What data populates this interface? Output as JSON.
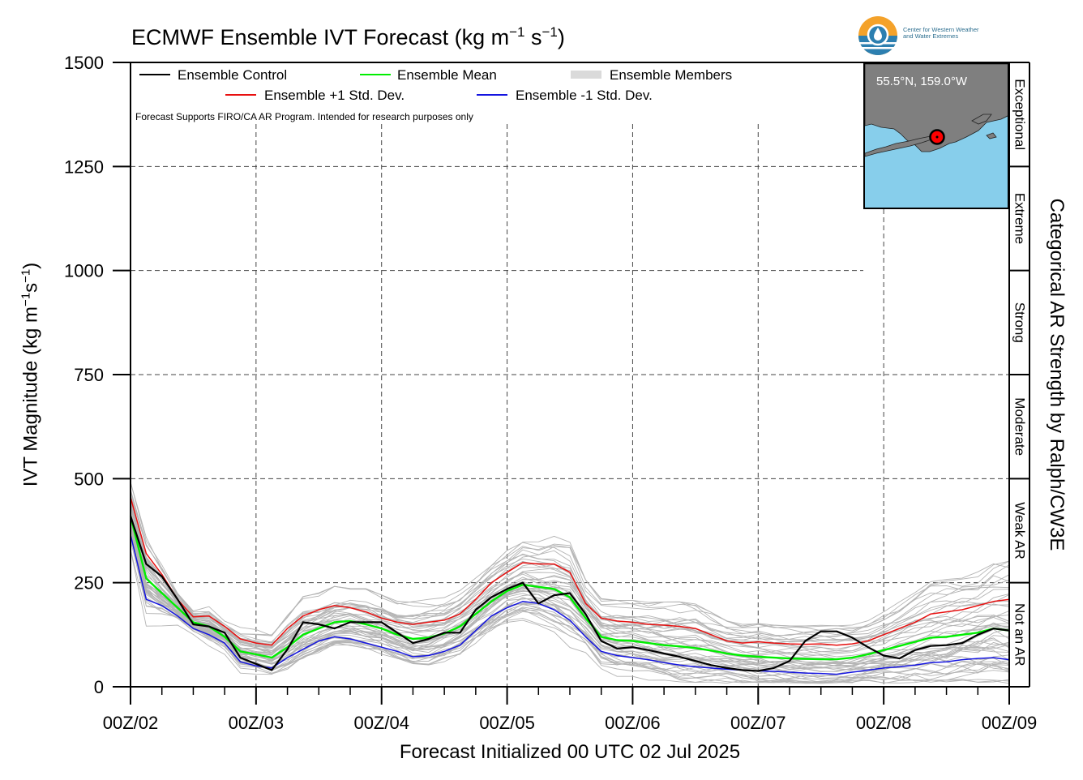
{
  "title_main": "ECMWF Ensemble IVT Forecast (kg m",
  "title_exp1": "−1",
  "title_mid": " s",
  "title_exp2": "−1",
  "title_end": ")",
  "ylabel_main": "IVT Magnitude (kg m",
  "ylabel_exp1": "−1",
  "ylabel_mid": "s",
  "ylabel_exp2": "−1",
  "ylabel_end": ")",
  "right_label": "Categorical AR Strength by Ralph/CW3E",
  "xlabel": "Forecast Initialized 00 UTC 02 Jul 2025",
  "disclaimer": "Forecast Supports FIRO/CA AR Program. Intended for research purposes only",
  "logo_line1": "Center for Western Weather",
  "logo_line2": "and Water Extremes",
  "inset_label": "55.5°N, 159.0°W",
  "colors": {
    "control": "#000000",
    "mean": "#00ee00",
    "plus_std": "#e81010",
    "minus_std": "#1414e0",
    "members": "#b4b4b4",
    "map_ocean": "#87ceeb",
    "map_land": "#7f7f7f",
    "marker": "#ff0000"
  },
  "chart_data": {
    "type": "line",
    "x_unit": "hours since 00Z 02 Jul 2025",
    "xlim": [
      0,
      168
    ],
    "ylim": [
      0,
      1500
    ],
    "yticks": [
      0,
      250,
      500,
      750,
      1000,
      1250,
      1500
    ],
    "xtick_labels": [
      "00Z/02",
      "00Z/03",
      "00Z/04",
      "00Z/05",
      "00Z/06",
      "00Z/07",
      "00Z/08",
      "00Z/09"
    ],
    "grid": true,
    "legend_position": "top-left",
    "legend": [
      "Ensemble Control",
      "Ensemble Mean",
      "Ensemble Members",
      "Ensemble +1 Std. Dev.",
      "Ensemble -1 Std. Dev."
    ],
    "categories": [
      {
        "label": "Not an AR",
        "range": [
          0,
          250
        ]
      },
      {
        "label": "Weak AR",
        "range": [
          250,
          500
        ]
      },
      {
        "label": "Moderate",
        "range": [
          500,
          750
        ]
      },
      {
        "label": "Strong",
        "range": [
          750,
          1000
        ]
      },
      {
        "label": "Extreme",
        "range": [
          1000,
          1250
        ]
      },
      {
        "label": "Exceptional",
        "range": [
          1250,
          1500
        ]
      }
    ],
    "x": [
      0,
      3,
      6,
      9,
      12,
      15,
      18,
      21,
      24,
      27,
      30,
      33,
      36,
      39,
      42,
      45,
      48,
      51,
      54,
      57,
      60,
      63,
      66,
      69,
      72,
      75,
      78,
      81,
      84,
      87,
      90,
      93,
      96,
      99,
      102,
      105,
      108,
      111,
      114,
      117,
      120,
      123,
      126,
      129,
      132,
      135,
      138,
      141,
      144,
      147,
      150,
      153,
      156,
      159,
      162,
      165,
      168
    ],
    "series": [
      {
        "name": "Ensemble Control",
        "values": [
          410,
          295,
          265,
          210,
          150,
          145,
          130,
          70,
          55,
          40,
          90,
          155,
          150,
          140,
          155,
          155,
          155,
          130,
          105,
          115,
          130,
          130,
          185,
          215,
          235,
          250,
          200,
          220,
          225,
          175,
          110,
          92,
          95,
          88,
          80,
          72,
          62,
          52,
          45,
          40,
          38,
          45,
          62,
          110,
          133,
          133,
          118,
          95,
          75,
          68,
          88,
          98,
          100,
          105,
          125,
          140,
          135
        ]
      },
      {
        "name": "Ensemble Mean",
        "values": [
          410,
          260,
          225,
          190,
          155,
          145,
          120,
          85,
          78,
          70,
          95,
          125,
          140,
          155,
          158,
          150,
          140,
          125,
          115,
          118,
          128,
          145,
          175,
          205,
          230,
          245,
          240,
          235,
          215,
          165,
          120,
          112,
          110,
          105,
          100,
          97,
          93,
          87,
          80,
          75,
          72,
          70,
          68,
          67,
          66,
          66,
          70,
          78,
          88,
          98,
          108,
          118,
          120,
          125,
          130,
          140,
          135
        ]
      },
      {
        "name": "Ensemble +1 Std. Dev.",
        "values": [
          455,
          320,
          270,
          210,
          168,
          170,
          145,
          115,
          105,
          100,
          140,
          170,
          185,
          195,
          190,
          180,
          165,
          155,
          150,
          155,
          160,
          175,
          210,
          250,
          275,
          298,
          295,
          295,
          275,
          200,
          165,
          158,
          155,
          150,
          148,
          145,
          140,
          125,
          110,
          105,
          108,
          105,
          103,
          102,
          103,
          100,
          103,
          110,
          125,
          140,
          155,
          175,
          180,
          185,
          195,
          205,
          210
        ]
      },
      {
        "name": "Ensemble -1 Std. Dev.",
        "values": [
          365,
          210,
          195,
          170,
          140,
          125,
          105,
          60,
          50,
          45,
          70,
          90,
          110,
          120,
          115,
          105,
          95,
          85,
          72,
          75,
          85,
          100,
          135,
          170,
          190,
          205,
          200,
          185,
          160,
          120,
          85,
          75,
          70,
          65,
          58,
          52,
          48,
          45,
          42,
          40,
          38,
          37,
          35,
          33,
          32,
          30,
          35,
          40,
          45,
          48,
          52,
          58,
          60,
          65,
          68,
          70,
          65
        ]
      }
    ]
  }
}
